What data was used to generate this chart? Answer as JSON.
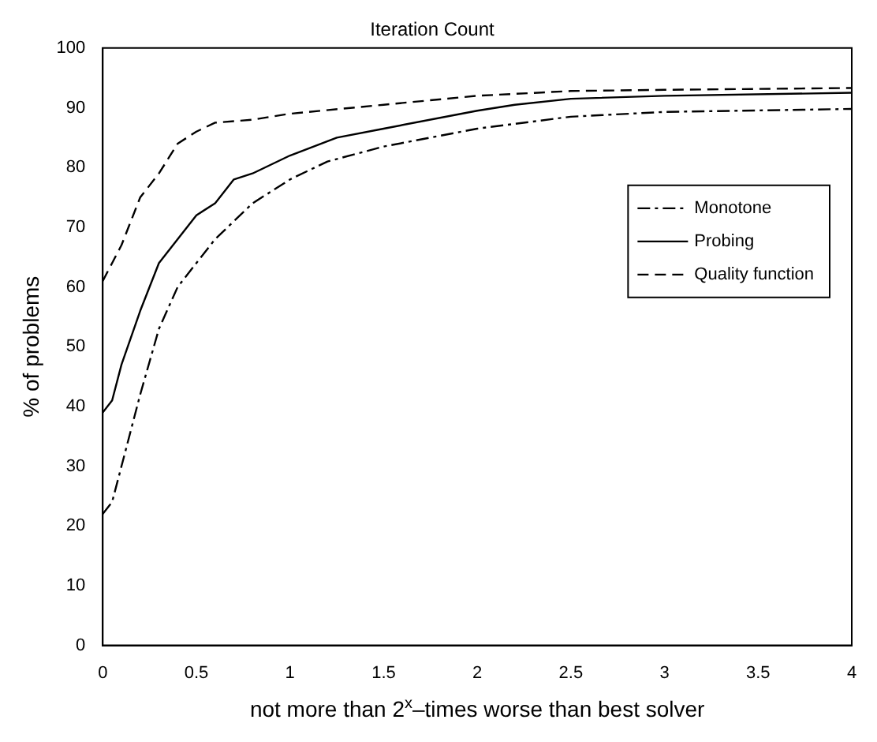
{
  "chart_data": {
    "type": "line",
    "title": "Iteration Count",
    "xlabel": "not more than 2$^{x}$–times worse than best solver",
    "ylabel": "% of problems",
    "xlim": [
      0,
      4
    ],
    "xticks": [
      0,
      0.5,
      1,
      1.5,
      2,
      2.5,
      3,
      3.5,
      4
    ],
    "ylim": [
      0,
      100
    ],
    "yticks": [
      0,
      10,
      20,
      30,
      40,
      50,
      60,
      70,
      80,
      90,
      100
    ],
    "grid": false,
    "legend": "right",
    "marker": "none",
    "series": [
      {
        "name": "Monotone",
        "color": "#000000",
        "line_style": "dashdot",
        "x": [
          0,
          0.05,
          0.1,
          0.2,
          0.3,
          0.4,
          0.5,
          0.6,
          0.7,
          0.8,
          1,
          1.2,
          1.5,
          2,
          2.5,
          3,
          4
        ],
        "values": [
          22,
          24,
          30,
          42,
          53,
          60,
          64,
          68,
          71,
          74,
          78,
          81,
          83.5,
          86.5,
          88.5,
          89.3,
          89.8
        ]
      },
      {
        "name": "Probing",
        "color": "#000000",
        "line_style": "solid",
        "x": [
          0,
          0.05,
          0.1,
          0.2,
          0.3,
          0.4,
          0.5,
          0.6,
          0.7,
          0.8,
          1,
          1.25,
          1.5,
          2,
          2.2,
          2.5,
          3,
          4
        ],
        "values": [
          39,
          41,
          47,
          56,
          64,
          68,
          72,
          74,
          78,
          79,
          82,
          85,
          86.5,
          89.5,
          90.5,
          91.5,
          92,
          92.5
        ]
      },
      {
        "name": "Quality function",
        "color": "#000000",
        "line_style": "dashed",
        "x": [
          0,
          0.1,
          0.2,
          0.3,
          0.4,
          0.5,
          0.6,
          0.8,
          1,
          1.5,
          2,
          2.5,
          3,
          4
        ],
        "values": [
          61,
          67,
          75,
          79,
          84,
          86,
          87.5,
          88,
          89,
          90.5,
          92,
          92.8,
          93,
          93.3
        ]
      }
    ]
  }
}
